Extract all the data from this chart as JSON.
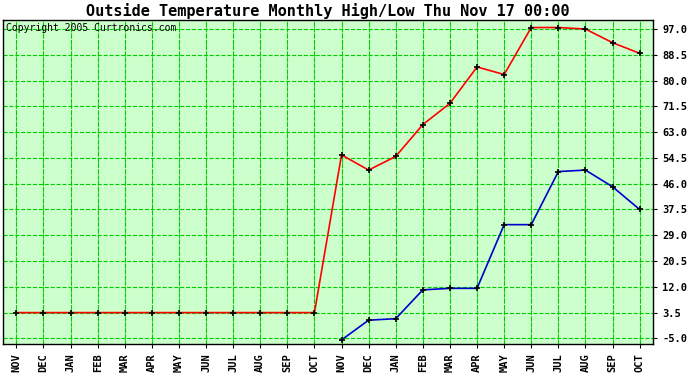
{
  "title": "Outside Temperature Monthly High/Low Thu Nov 17 00:00",
  "copyright": "Copyright 2005 Curtronics.com",
  "x_labels": [
    "NOV",
    "DEC",
    "JAN",
    "FEB",
    "MAR",
    "APR",
    "MAY",
    "JUN",
    "JUL",
    "AUG",
    "SEP",
    "OCT",
    "NOV",
    "DEC",
    "JAN",
    "FEB",
    "MAR",
    "APR",
    "MAY",
    "JUN",
    "JUL",
    "AUG",
    "SEP",
    "OCT"
  ],
  "yticks": [
    -5.0,
    3.5,
    12.0,
    20.5,
    29.0,
    37.5,
    46.0,
    54.5,
    63.0,
    71.5,
    80.0,
    88.5,
    97.0
  ],
  "ylim": [
    -7.0,
    100.0
  ],
  "high_color": "#ff0000",
  "low_color": "#0000cc",
  "grid_color": "#00cc00",
  "grid_minor_color": "#88ee88",
  "bg_color": "#ccffcc",
  "high_data_x": [
    0,
    1,
    2,
    3,
    4,
    5,
    6,
    7,
    8,
    9,
    10,
    11,
    12,
    13,
    14,
    15,
    16,
    17,
    18,
    19,
    20,
    21,
    22,
    23
  ],
  "high_data_y": [
    3.5,
    3.5,
    3.5,
    3.5,
    3.5,
    3.5,
    3.5,
    3.5,
    3.5,
    3.5,
    3.5,
    3.5,
    55.5,
    50.5,
    55.0,
    65.5,
    72.5,
    84.5,
    82.0,
    97.5,
    97.5,
    97.0,
    92.5,
    89.0
  ],
  "low_data_x": [
    12,
    13,
    14,
    15,
    16,
    17,
    18,
    19,
    20,
    21,
    22,
    23
  ],
  "low_data_y": [
    -5.5,
    1.0,
    1.5,
    11.0,
    11.5,
    11.5,
    32.5,
    32.5,
    50.0,
    50.5,
    45.0,
    37.5
  ],
  "title_fontsize": 11,
  "tick_fontsize": 7.5,
  "copyright_fontsize": 7
}
